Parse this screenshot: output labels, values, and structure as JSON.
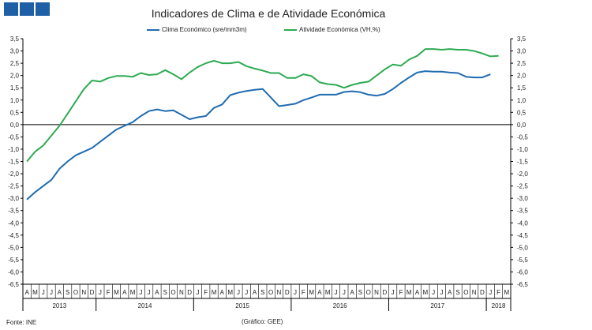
{
  "header": {
    "title": "Indicadores de Clima e de Atividade Económica"
  },
  "footer": {
    "source": "Fonte: INE",
    "credit": "(Gráfico: GEE)"
  },
  "chart_data": {
    "type": "line",
    "title": "Indicadores de Clima e de Atividade Económica",
    "ylim": [
      -6.5,
      3.5
    ],
    "y_ticks": [
      "3,5",
      "3,0",
      "2,5",
      "2,0",
      "1,5",
      "1,0",
      "0,5",
      "0,0",
      "-0,5",
      "-1,0",
      "-1,5",
      "-2,0",
      "-2,5",
      "-3,0",
      "-3,5",
      "-4,0",
      "-4,5",
      "-5,0",
      "-5,5",
      "-6,0",
      "-6,5"
    ],
    "month_labels": [
      "A",
      "M",
      "J",
      "J",
      "A",
      "S",
      "O",
      "N",
      "D",
      "J",
      "F",
      "M",
      "A",
      "M",
      "J",
      "J",
      "A",
      "S",
      "O",
      "N",
      "D",
      "J",
      "F",
      "M",
      "A",
      "M",
      "J",
      "J",
      "A",
      "S",
      "O",
      "N",
      "D",
      "J",
      "F",
      "M",
      "A",
      "M",
      "J",
      "J",
      "A",
      "S",
      "O",
      "N",
      "D",
      "J",
      "F",
      "M",
      "A",
      "M",
      "J",
      "J",
      "A",
      "S",
      "O",
      "N",
      "D",
      "J",
      "F",
      "M"
    ],
    "year_labels": [
      {
        "label": "2013",
        "start": 0,
        "end": 8
      },
      {
        "label": "2014",
        "start": 9,
        "end": 20
      },
      {
        "label": "2015",
        "start": 21,
        "end": 32
      },
      {
        "label": "2016",
        "start": 33,
        "end": 44
      },
      {
        "label": "2017",
        "start": 45,
        "end": 56
      },
      {
        "label": "2018",
        "start": 57,
        "end": 59
      }
    ],
    "legend_position": "top",
    "series": [
      {
        "name": "Clima Económico (sre/mm3m)",
        "color": "#1f6bb0",
        "values": [
          -3.05,
          -2.75,
          -2.5,
          -2.25,
          -1.8,
          -1.5,
          -1.25,
          -1.1,
          -0.95,
          -0.7,
          -0.45,
          -0.2,
          -0.05,
          0.1,
          0.35,
          0.55,
          0.62,
          0.55,
          0.58,
          0.4,
          0.22,
          0.3,
          0.35,
          0.68,
          0.82,
          1.2,
          1.3,
          1.37,
          1.42,
          1.45,
          1.1,
          0.75,
          0.8,
          0.85,
          1.0,
          1.1,
          1.22,
          1.22,
          1.22,
          1.33,
          1.36,
          1.32,
          1.22,
          1.18,
          1.25,
          1.45,
          1.7,
          1.92,
          2.12,
          2.18,
          2.16,
          2.16,
          2.12,
          2.1,
          1.95,
          1.92,
          1.92,
          2.05
        ]
      },
      {
        "name": "Atividade Económica (VH,%)",
        "color": "#2eaa52",
        "values": [
          -1.5,
          -1.1,
          -0.85,
          -0.45,
          -0.05,
          0.45,
          0.95,
          1.45,
          1.8,
          1.75,
          1.9,
          1.98,
          1.98,
          1.95,
          2.1,
          2.02,
          2.05,
          2.22,
          2.05,
          1.85,
          2.12,
          2.35,
          2.5,
          2.6,
          2.5,
          2.5,
          2.55,
          2.38,
          2.28,
          2.2,
          2.1,
          2.1,
          1.9,
          1.9,
          2.05,
          1.98,
          1.72,
          1.65,
          1.62,
          1.5,
          1.62,
          1.7,
          1.75,
          2.0,
          2.25,
          2.45,
          2.4,
          2.65,
          2.8,
          3.08,
          3.08,
          3.05,
          3.08,
          3.05,
          3.05,
          3.0,
          2.9,
          2.78,
          2.8
        ]
      }
    ]
  }
}
